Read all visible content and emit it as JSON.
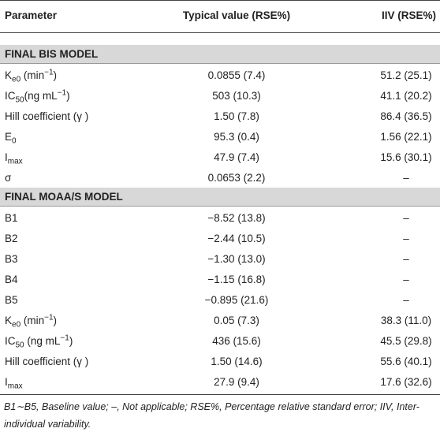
{
  "table": {
    "header": [
      "Parameter",
      "Typical value (RSE%)",
      "IIV (RSE%)"
    ],
    "sections": [
      {
        "title": "FINAL BIS MODEL",
        "rows": [
          [
            [
              {
                "text": "K"
              },
              {
                "sub": "e0"
              },
              {
                "text": " (min"
              },
              {
                "sup": "−1"
              },
              {
                "text": ")"
              }
            ],
            "0.0855 (7.4)",
            "51.2 (25.1)"
          ],
          [
            [
              {
                "text": "IC"
              },
              {
                "sub": "50"
              },
              {
                "text": "(ng mL"
              },
              {
                "sup": "−1"
              },
              {
                "text": ")"
              }
            ],
            "503 (10.3)",
            "41.1 (20.2)"
          ],
          [
            [
              {
                "text": "Hill coefficient (γ )"
              }
            ],
            "1.50 (7.8)",
            "86.4 (36.5)"
          ],
          [
            [
              {
                "text": "E"
              },
              {
                "sub": "0"
              }
            ],
            "95.3 (0.4)",
            "1.56 (22.1)"
          ],
          [
            [
              {
                "text": "I"
              },
              {
                "sub": "max"
              }
            ],
            "47.9 (7.4)",
            "15.6 (30.1)"
          ],
          [
            [
              {
                "text": "σ"
              }
            ],
            "0.0653 (2.2)",
            "–"
          ]
        ]
      },
      {
        "title": "FINAL MOAA/S MODEL",
        "rows": [
          [
            [
              {
                "text": "B1"
              }
            ],
            "−8.52 (13.8)",
            "–"
          ],
          [
            [
              {
                "text": "B2"
              }
            ],
            "−2.44 (10.5)",
            "–"
          ],
          [
            [
              {
                "text": "B3"
              }
            ],
            "−1.30 (13.0)",
            "–"
          ],
          [
            [
              {
                "text": "B4"
              }
            ],
            "−1.15 (16.8)",
            "–"
          ],
          [
            [
              {
                "text": "B5"
              }
            ],
            "−0.895 (21.6)",
            "–"
          ],
          [
            [
              {
                "text": "K"
              },
              {
                "sub": "e0"
              },
              {
                "text": " (min"
              },
              {
                "sup": "−1"
              },
              {
                "text": ")"
              }
            ],
            "0.05 (7.3)",
            "38.3 (11.0)"
          ],
          [
            [
              {
                "text": "IC"
              },
              {
                "sub": "50"
              },
              {
                "text": " (ng mL"
              },
              {
                "sup": "−1"
              },
              {
                "text": ")"
              }
            ],
            "436 (15.6)",
            "45.5 (29.8)"
          ],
          [
            [
              {
                "text": "Hill coefficient (γ )"
              }
            ],
            "1.50 (14.6)",
            "55.6 (40.1)"
          ],
          [
            [
              {
                "text": "I"
              },
              {
                "sub": "max"
              }
            ],
            "27.9 (9.4)",
            "17.6 (32.6)"
          ]
        ]
      }
    ],
    "footnote": "B1∼B5, Baseline value; –, Not applicable; RSE%, Percentage relative standard error; IIV, Inter-individual variability."
  }
}
